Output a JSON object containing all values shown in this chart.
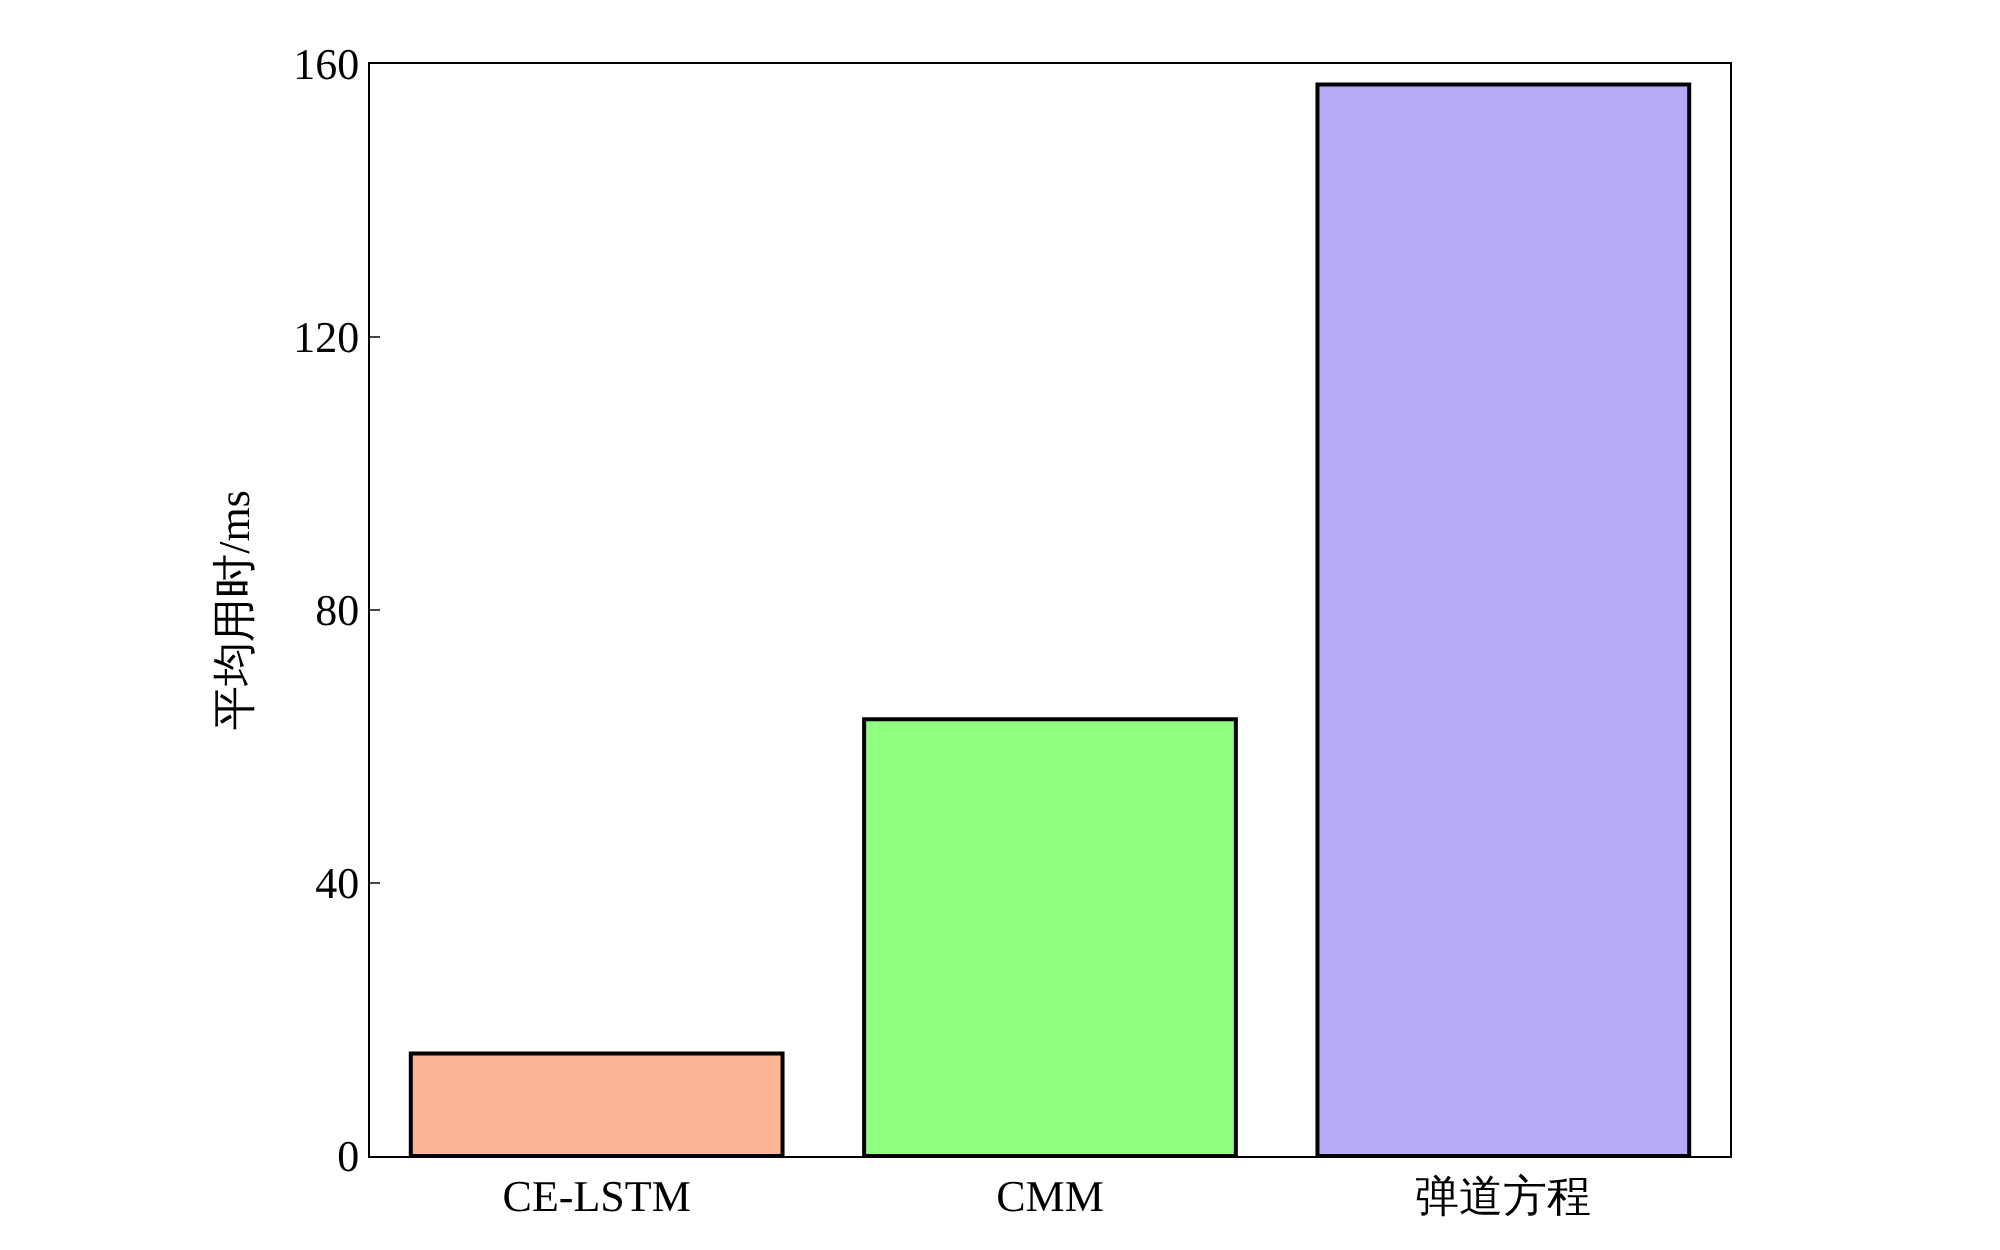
{
  "chart_data": {
    "type": "bar",
    "ylabel": "平均用时/ms",
    "categories": [
      "CE-LSTM",
      "CMM",
      "弹道方程"
    ],
    "values": [
      15,
      64,
      157
    ],
    "colors": [
      "#fbb496",
      "#8ffe80",
      "#b5abf8"
    ],
    "ylim": [
      0,
      160
    ],
    "yticks": [
      0,
      40,
      80,
      120,
      160
    ]
  }
}
